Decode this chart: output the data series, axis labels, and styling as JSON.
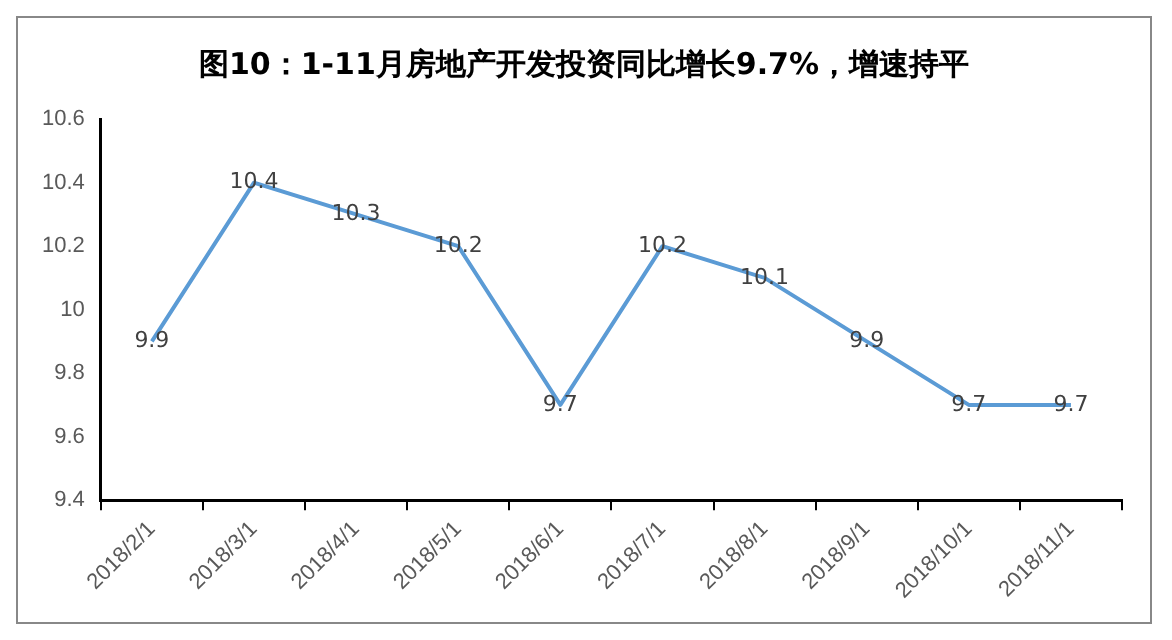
{
  "chart_data": {
    "type": "line",
    "title": "图10：1-11月房地产开发投资同比增长9.7%，增速持平",
    "categories": [
      "2018/2/1",
      "2018/3/1",
      "2018/4/1",
      "2018/5/1",
      "2018/6/1",
      "2018/7/1",
      "2018/8/1",
      "2018/9/1",
      "2018/10/1",
      "2018/11/1"
    ],
    "series": [
      {
        "color": "#5b9bd5",
        "values": [
          9.9,
          10.4,
          10.3,
          10.2,
          9.7,
          10.2,
          10.1,
          9.9,
          9.7,
          9.7
        ]
      }
    ],
    "ylim": [
      9.4,
      10.6
    ],
    "yticks": [
      9.4,
      9.6,
      9.8,
      10,
      10.2,
      10.4,
      10.6
    ],
    "grid": false,
    "legend": false,
    "marker": "none",
    "line_style": "solid",
    "data_labels": true
  }
}
